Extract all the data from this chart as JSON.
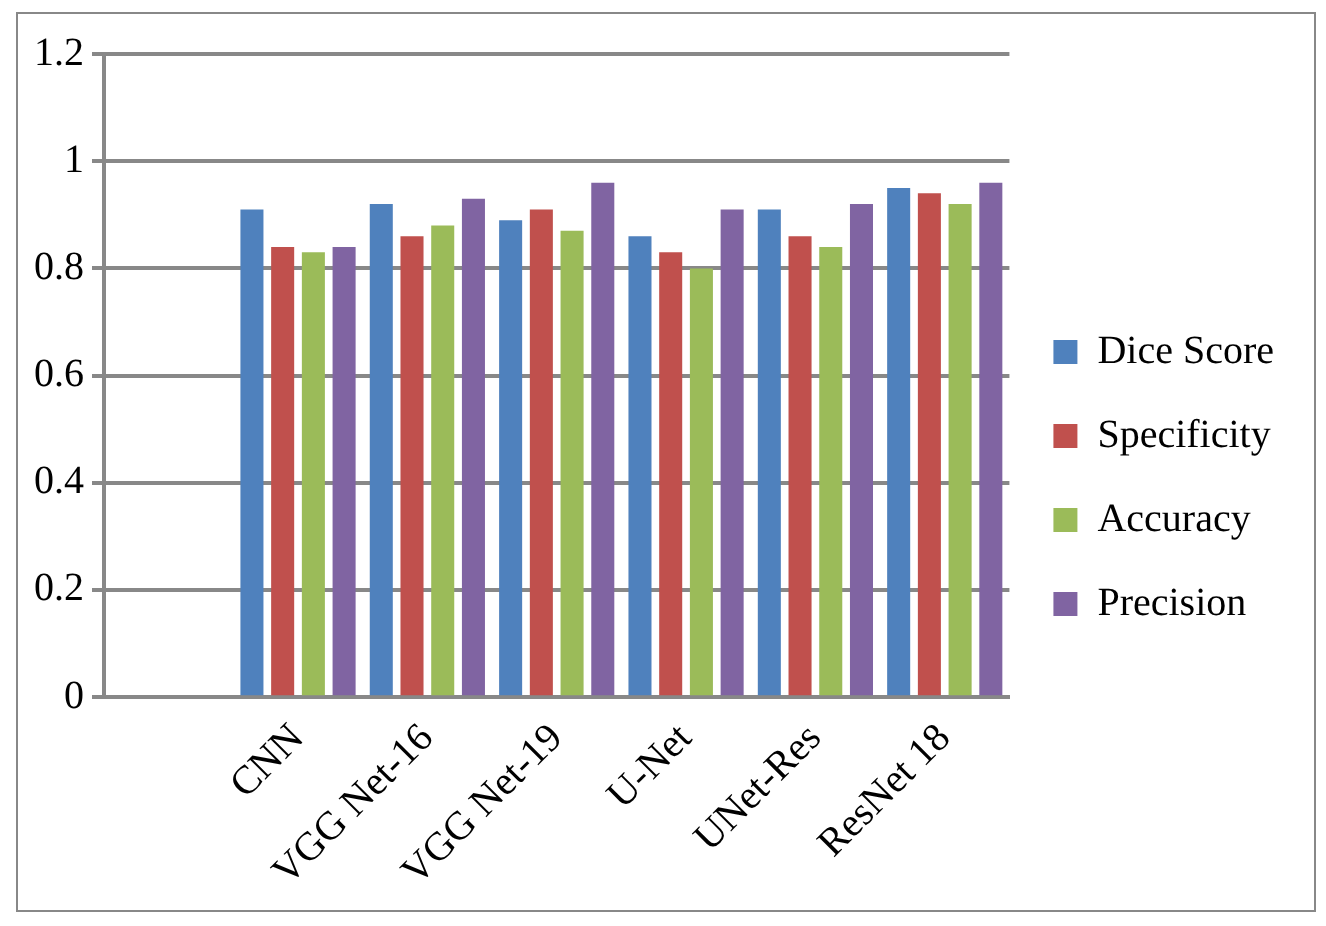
{
  "chart_data": {
    "type": "bar",
    "categories": [
      null,
      "CNN",
      "VGG Net-16",
      "VGG Net-19",
      "U-Net",
      "UNet-Res",
      "ResNet 18"
    ],
    "series": [
      {
        "name": "Dice Score",
        "color": "#4f81bd",
        "values": [
          null,
          0.91,
          0.92,
          0.89,
          0.86,
          0.91,
          0.95
        ]
      },
      {
        "name": "Specificity",
        "color": "#c0504d",
        "values": [
          null,
          0.84,
          0.86,
          0.91,
          0.83,
          0.86,
          0.94
        ]
      },
      {
        "name": "Accuracy",
        "color": "#9bbb59",
        "values": [
          null,
          0.83,
          0.88,
          0.87,
          0.8,
          0.84,
          0.92
        ]
      },
      {
        "name": "Precision",
        "color": "#8064a2",
        "values": [
          null,
          0.84,
          0.93,
          0.96,
          0.91,
          0.92,
          0.96
        ]
      }
    ],
    "ylim": [
      0,
      1.2
    ],
    "yticks": [
      0,
      0.2,
      0.4,
      0.6,
      0.8,
      1,
      1.2
    ],
    "grid": "y",
    "legend": "right"
  }
}
